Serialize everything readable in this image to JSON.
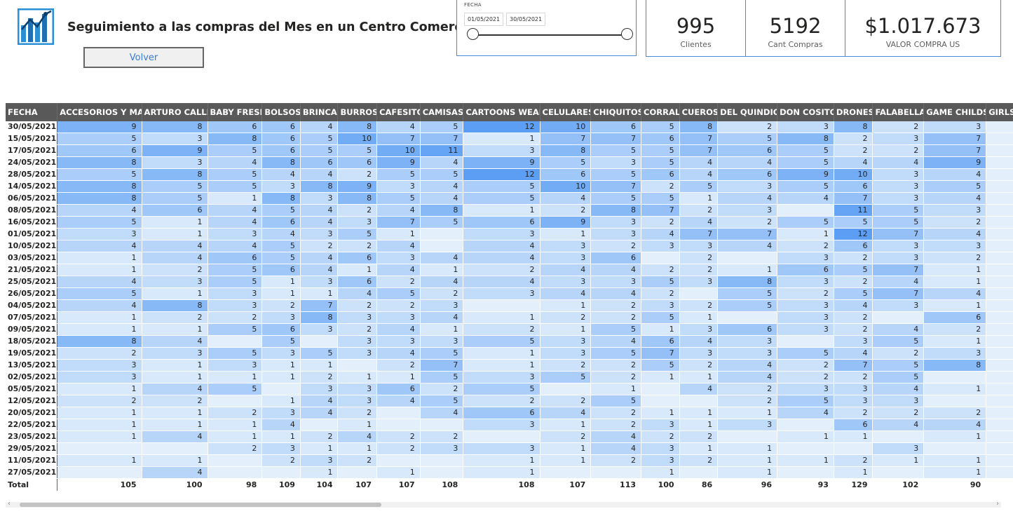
{
  "header": {
    "title": "Seguimiento a las compras del Mes en un Centro Comercial",
    "back_label": "Volver"
  },
  "slicer": {
    "label": "FECHA",
    "start": "01/05/2021",
    "end": "30/05/2021"
  },
  "cards": [
    {
      "value": "995",
      "caption": "Clientes"
    },
    {
      "value": "5192",
      "caption": "Cant Compras"
    },
    {
      "value": "$1.017.673",
      "caption": "VALOR COMPRA US"
    }
  ],
  "colors": {
    "header_bg": "#595959",
    "heat_low": "#e3f0fc",
    "heat_high": "#5b9ef4",
    "accent": "#4a8ad4"
  },
  "table": {
    "columns": [
      "FECHA",
      "ACCESORIOS Y MAS",
      "ARTURO CALLE",
      "BABY FRESH",
      "BOLSOS",
      "BRINCA",
      "BURROS",
      "CAFESITO",
      "CAMISAS",
      "CARTOONS WEAR",
      "CELULARES",
      "CHIQUITOS",
      "CORRAL",
      "CUEROS",
      "DEL QUINDIO",
      "DON COSITO",
      "DRONES",
      "FALABELLA",
      "GAME CHILDS",
      "GIRLS L"
    ],
    "rows": [
      [
        "30/05/2021",
        "9",
        "8",
        "6",
        "6",
        "4",
        "8",
        "4",
        "5",
        "12",
        "10",
        "6",
        "5",
        "8",
        "2",
        "3",
        "8",
        "2",
        "3",
        ""
      ],
      [
        "15/05/2021",
        "5",
        "3",
        "8",
        "6",
        "5",
        "10",
        "7",
        "7",
        "1",
        "7",
        "7",
        "6",
        "7",
        "5",
        "8",
        "2",
        "3",
        "7",
        ""
      ],
      [
        "17/05/2021",
        "6",
        "9",
        "5",
        "6",
        "5",
        "5",
        "10",
        "11",
        "3",
        "8",
        "5",
        "5",
        "7",
        "6",
        "5",
        "2",
        "2",
        "7",
        ""
      ],
      [
        "24/05/2021",
        "8",
        "3",
        "4",
        "8",
        "6",
        "6",
        "9",
        "4",
        "9",
        "5",
        "3",
        "5",
        "4",
        "4",
        "5",
        "4",
        "4",
        "9",
        ""
      ],
      [
        "28/05/2021",
        "5",
        "8",
        "5",
        "4",
        "4",
        "2",
        "5",
        "5",
        "12",
        "6",
        "5",
        "6",
        "4",
        "6",
        "9",
        "10",
        "3",
        "4",
        ""
      ],
      [
        "14/05/2021",
        "8",
        "5",
        "5",
        "3",
        "8",
        "9",
        "3",
        "4",
        "5",
        "10",
        "7",
        "2",
        "5",
        "3",
        "5",
        "6",
        "3",
        "5",
        ""
      ],
      [
        "06/05/2021",
        "8",
        "5",
        "1",
        "8",
        "3",
        "8",
        "5",
        "4",
        "5",
        "4",
        "5",
        "5",
        "1",
        "4",
        "4",
        "7",
        "3",
        "4",
        ""
      ],
      [
        "08/05/2021",
        "4",
        "6",
        "4",
        "5",
        "4",
        "2",
        "4",
        "8",
        "1",
        "2",
        "8",
        "7",
        "2",
        "3",
        "",
        "11",
        "5",
        "3",
        ""
      ],
      [
        "16/05/2021",
        "5",
        "1",
        "4",
        "6",
        "4",
        "3",
        "7",
        "5",
        "6",
        "9",
        "3",
        "2",
        "4",
        "2",
        "5",
        "5",
        "5",
        "2",
        ""
      ],
      [
        "01/05/2021",
        "3",
        "1",
        "3",
        "4",
        "3",
        "5",
        "1",
        "",
        "3",
        "1",
        "3",
        "4",
        "7",
        "7",
        "1",
        "12",
        "7",
        "4",
        ""
      ],
      [
        "10/05/2021",
        "4",
        "4",
        "4",
        "5",
        "2",
        "2",
        "4",
        "",
        "4",
        "3",
        "2",
        "3",
        "3",
        "4",
        "2",
        "6",
        "3",
        "3",
        ""
      ],
      [
        "03/05/2021",
        "1",
        "4",
        "6",
        "5",
        "4",
        "6",
        "3",
        "4",
        "4",
        "3",
        "6",
        "",
        "2",
        "",
        "3",
        "2",
        "3",
        "2",
        ""
      ],
      [
        "21/05/2021",
        "1",
        "2",
        "5",
        "6",
        "4",
        "1",
        "4",
        "1",
        "2",
        "4",
        "4",
        "2",
        "2",
        "1",
        "6",
        "5",
        "7",
        "1",
        ""
      ],
      [
        "25/05/2021",
        "4",
        "3",
        "5",
        "1",
        "3",
        "6",
        "2",
        "4",
        "4",
        "3",
        "3",
        "5",
        "3",
        "8",
        "3",
        "2",
        "4",
        "1",
        ""
      ],
      [
        "26/05/2021",
        "5",
        "1",
        "3",
        "1",
        "1",
        "4",
        "5",
        "2",
        "3",
        "4",
        "4",
        "2",
        "",
        "5",
        "2",
        "5",
        "7",
        "4",
        ""
      ],
      [
        "04/05/2021",
        "4",
        "8",
        "3",
        "2",
        "7",
        "2",
        "2",
        "3",
        "",
        "1",
        "2",
        "3",
        "2",
        "5",
        "3",
        "4",
        "3",
        "1",
        ""
      ],
      [
        "07/05/2021",
        "1",
        "2",
        "2",
        "3",
        "8",
        "3",
        "3",
        "4",
        "1",
        "2",
        "2",
        "5",
        "1",
        "",
        "3",
        "2",
        "",
        "6",
        ""
      ],
      [
        "09/05/2021",
        "1",
        "1",
        "5",
        "6",
        "3",
        "2",
        "4",
        "1",
        "2",
        "1",
        "5",
        "1",
        "3",
        "6",
        "3",
        "2",
        "4",
        "2",
        ""
      ],
      [
        "18/05/2021",
        "8",
        "4",
        "",
        "5",
        "",
        "3",
        "3",
        "3",
        "5",
        "3",
        "4",
        "6",
        "4",
        "3",
        "",
        "3",
        "5",
        "1",
        ""
      ],
      [
        "19/05/2021",
        "2",
        "3",
        "5",
        "3",
        "5",
        "3",
        "4",
        "5",
        "1",
        "3",
        "5",
        "7",
        "3",
        "3",
        "5",
        "4",
        "2",
        "3",
        ""
      ],
      [
        "13/05/2021",
        "3",
        "1",
        "3",
        "1",
        "1",
        "",
        "2",
        "7",
        "1",
        "2",
        "2",
        "5",
        "2",
        "4",
        "2",
        "7",
        "5",
        "8",
        ""
      ],
      [
        "02/05/2021",
        "3",
        "1",
        "1",
        "1",
        "2",
        "1",
        "1",
        "5",
        "3",
        "5",
        "2",
        "1",
        "1",
        "4",
        "2",
        "2",
        "5",
        "",
        ""
      ],
      [
        "05/05/2021",
        "1",
        "4",
        "5",
        "",
        "3",
        "3",
        "6",
        "2",
        "5",
        "",
        "1",
        "",
        "4",
        "2",
        "3",
        "3",
        "4",
        "1",
        ""
      ],
      [
        "12/05/2021",
        "2",
        "2",
        "",
        "1",
        "4",
        "3",
        "4",
        "5",
        "2",
        "2",
        "5",
        "",
        "",
        "2",
        "5",
        "3",
        "3",
        "",
        ""
      ],
      [
        "20/05/2021",
        "1",
        "1",
        "2",
        "3",
        "4",
        "2",
        "",
        "4",
        "6",
        "4",
        "2",
        "1",
        "1",
        "1",
        "4",
        "2",
        "2",
        "2",
        ""
      ],
      [
        "22/05/2021",
        "1",
        "1",
        "1",
        "4",
        "",
        "1",
        "",
        "",
        "3",
        "1",
        "2",
        "3",
        "1",
        "3",
        "",
        "6",
        "4",
        "4",
        ""
      ],
      [
        "23/05/2021",
        "1",
        "4",
        "1",
        "1",
        "2",
        "4",
        "2",
        "2",
        "",
        "2",
        "4",
        "2",
        "2",
        "",
        "1",
        "1",
        "",
        "1",
        ""
      ],
      [
        "29/05/2021",
        "",
        "",
        "2",
        "3",
        "1",
        "1",
        "2",
        "3",
        "3",
        "1",
        "4",
        "3",
        "1",
        "1",
        "",
        "",
        "3",
        "",
        ""
      ],
      [
        "11/05/2021",
        "1",
        "1",
        "",
        "2",
        "3",
        "2",
        "",
        "",
        "1",
        "1",
        "2",
        "3",
        "2",
        "1",
        "1",
        "2",
        "1",
        "1",
        ""
      ],
      [
        "27/05/2021",
        "",
        "4",
        "",
        "",
        "1",
        "",
        "1",
        "",
        "1",
        "",
        "",
        "1",
        "",
        "1",
        "",
        "1",
        "",
        "1",
        ""
      ]
    ],
    "totals": [
      "Total",
      "105",
      "100",
      "98",
      "109",
      "104",
      "107",
      "107",
      "108",
      "108",
      "107",
      "113",
      "100",
      "86",
      "96",
      "93",
      "129",
      "102",
      "90",
      ""
    ]
  }
}
